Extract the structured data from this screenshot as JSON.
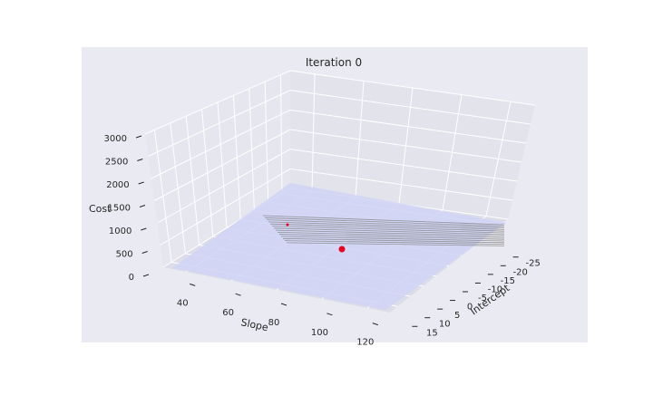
{
  "chart_data": {
    "type": "surface",
    "title": "Iteration 0",
    "zlabel": "Cost",
    "xlabel": "Slope",
    "ylabel": "Intercept",
    "z_ticks": [
      "0",
      "500",
      "1000",
      "1500",
      "2000",
      "2500",
      "3000"
    ],
    "slope_ticks": [
      "40",
      "60",
      "80",
      "100",
      "120"
    ],
    "intercept_ticks": [
      "-25",
      "-20",
      "-15",
      "-10",
      "-5",
      "0",
      "5",
      "10",
      "15"
    ],
    "zlim": [
      0,
      3000
    ],
    "slope_range": [
      30,
      130
    ],
    "intercept_range": [
      -28,
      18
    ],
    "grid": true,
    "colors": {
      "figure_bg": "#eaeaf2",
      "pane": "#e3e3ec",
      "grid": "#ffffff",
      "surface": "#d0d3f4",
      "contour": "#7a7a7a",
      "point": "#e8001c"
    }
  }
}
